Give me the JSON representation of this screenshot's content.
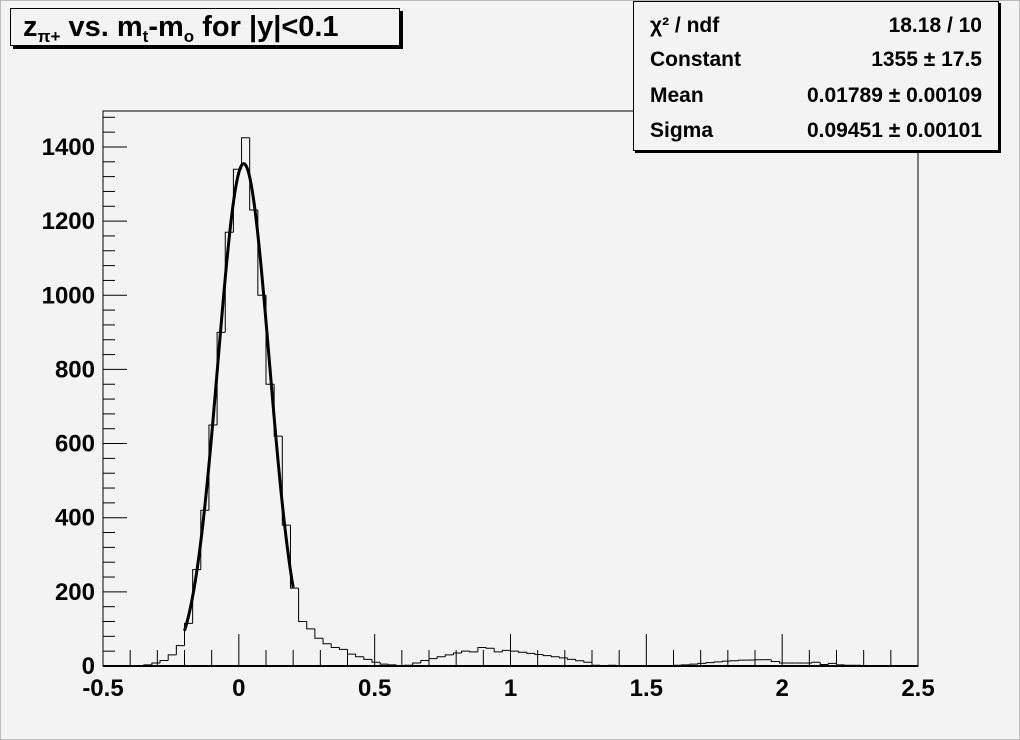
{
  "title_parts": [
    "z",
    "π+",
    " vs. m",
    "t",
    "-m",
    "o",
    " for |y|<0.1"
  ],
  "stats": [
    {
      "label": "χ² / ndf",
      "value": "18.18 / 10"
    },
    {
      "label": "Constant",
      "value": "1355 ± 17.5"
    },
    {
      "label": "Mean",
      "value": "0.01789 ± 0.00109"
    },
    {
      "label": "Sigma",
      "value": "0.09451 ± 0.00101"
    }
  ],
  "chart_data": {
    "type": "histogram",
    "xlim": [
      -0.5,
      2.5
    ],
    "ylim": [
      0,
      1497
    ],
    "bin_low": -0.5,
    "bin_width": 0.03,
    "x_ticks": [
      "-0.5",
      "0",
      "0.5",
      "1",
      "1.5",
      "2",
      "2.5"
    ],
    "y_ticks": [
      "0",
      "200",
      "400",
      "600",
      "800",
      "1000",
      "1200",
      "1400"
    ],
    "grid": false,
    "values": [
      0,
      0,
      0,
      0,
      0,
      3,
      8,
      15,
      30,
      55,
      115,
      260,
      420,
      650,
      900,
      1170,
      1340,
      1425,
      1230,
      1000,
      760,
      620,
      380,
      210,
      120,
      100,
      75,
      60,
      50,
      45,
      32,
      25,
      18,
      10,
      5,
      3,
      0,
      2,
      8,
      15,
      20,
      25,
      30,
      35,
      40,
      38,
      50,
      48,
      38,
      42,
      40,
      37,
      34,
      31,
      28,
      25,
      22,
      18,
      14,
      10,
      2,
      1,
      2,
      0,
      1,
      0,
      0,
      1,
      0,
      1,
      2,
      3,
      5,
      7,
      9,
      11,
      13,
      14,
      16,
      16,
      17,
      17,
      12,
      8,
      8,
      8,
      8,
      10,
      4,
      7,
      3,
      2,
      2,
      1,
      1,
      1,
      0,
      0,
      0,
      0
    ],
    "fit": {
      "function": "gaus",
      "constant": 1355,
      "mean": 0.01789,
      "sigma": 0.09451,
      "range": [
        -0.2,
        0.2
      ]
    },
    "line_color": "#000000",
    "background": "#f3f3f3"
  }
}
